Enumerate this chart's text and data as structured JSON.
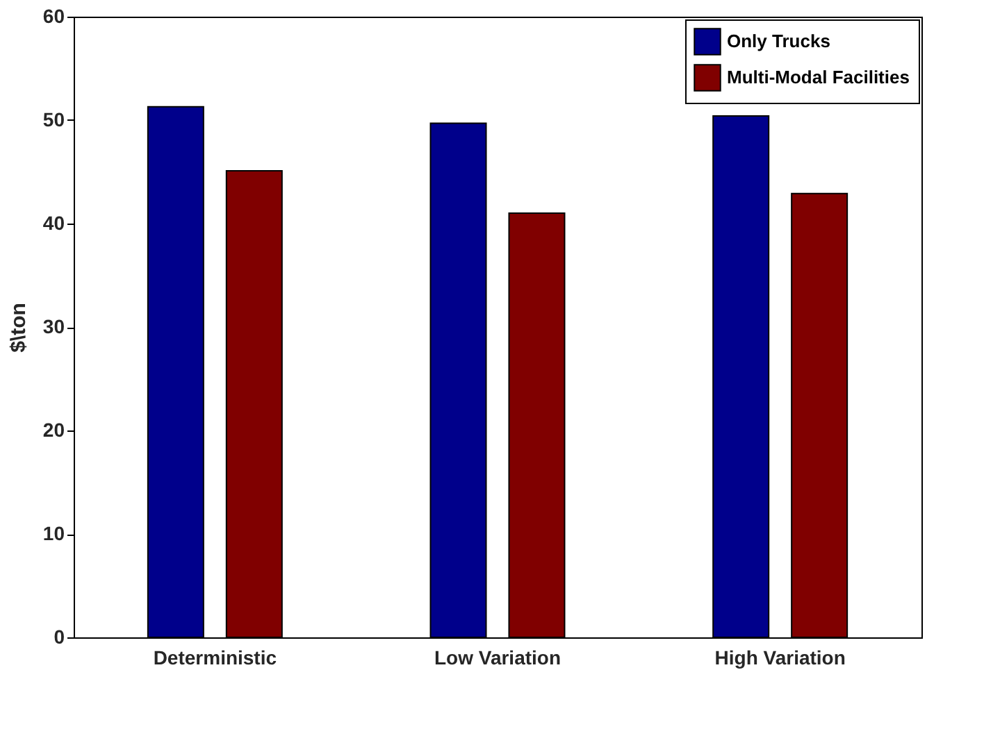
{
  "chart_data": {
    "type": "bar",
    "ylabel": "$\\ton",
    "categories": [
      "Deterministic",
      "Low Variation",
      "High Variation"
    ],
    "series": [
      {
        "name": "Only Trucks",
        "color": "#00008b",
        "values": [
          51.3,
          49.7,
          50.4
        ]
      },
      {
        "name": "Multi-Modal Facilities",
        "color": "#800000",
        "values": [
          45.1,
          41.0,
          42.9
        ]
      }
    ],
    "ylim": [
      0,
      60
    ],
    "yticks": [
      0,
      10,
      20,
      30,
      40,
      50,
      60
    ],
    "grid": false,
    "legend": "top right"
  }
}
